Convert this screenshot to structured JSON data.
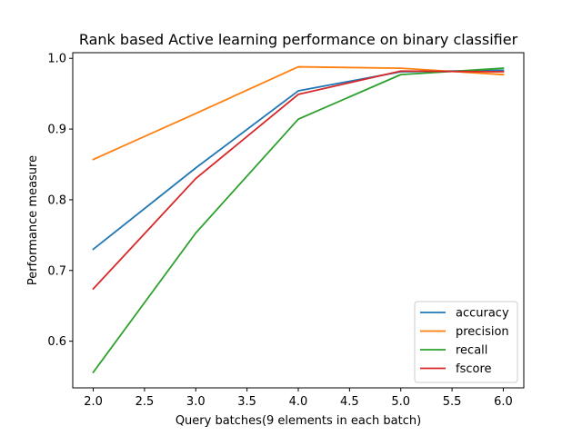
{
  "chart_data": {
    "type": "line",
    "title": "Rank based Active learning performance on binary classifier",
    "xlabel": "Query batches(9  elements in each batch)",
    "ylabel": "Performance measure",
    "x": [
      2.0,
      3.0,
      4.0,
      5.0,
      6.0
    ],
    "xlim": [
      1.8,
      6.2
    ],
    "ylim": [
      0.534,
      1.008
    ],
    "xticks": [
      "2.0",
      "2.5",
      "3.0",
      "3.5",
      "4.0",
      "4.5",
      "5.0",
      "5.5",
      "6.0"
    ],
    "xtick_values": [
      2.0,
      2.5,
      3.0,
      3.5,
      4.0,
      4.5,
      5.0,
      5.5,
      6.0
    ],
    "yticks": [
      "0.6",
      "0.7",
      "0.8",
      "0.9",
      "1.0"
    ],
    "ytick_values": [
      0.6,
      0.7,
      0.8,
      0.9,
      1.0
    ],
    "grid": false,
    "legend_position": "lower right",
    "series": [
      {
        "name": "accuracy",
        "color": "#1f77b4",
        "values": [
          0.73,
          0.845,
          0.954,
          0.981,
          0.983
        ]
      },
      {
        "name": "precision",
        "color": "#ff7f0e",
        "values": [
          0.857,
          0.922,
          0.988,
          0.986,
          0.977
        ]
      },
      {
        "name": "recall",
        "color": "#2ca02c",
        "values": [
          0.556,
          0.753,
          0.914,
          0.977,
          0.986
        ]
      },
      {
        "name": "fscore",
        "color": "#d62728",
        "values": [
          0.674,
          0.83,
          0.949,
          0.982,
          0.981
        ]
      }
    ]
  }
}
